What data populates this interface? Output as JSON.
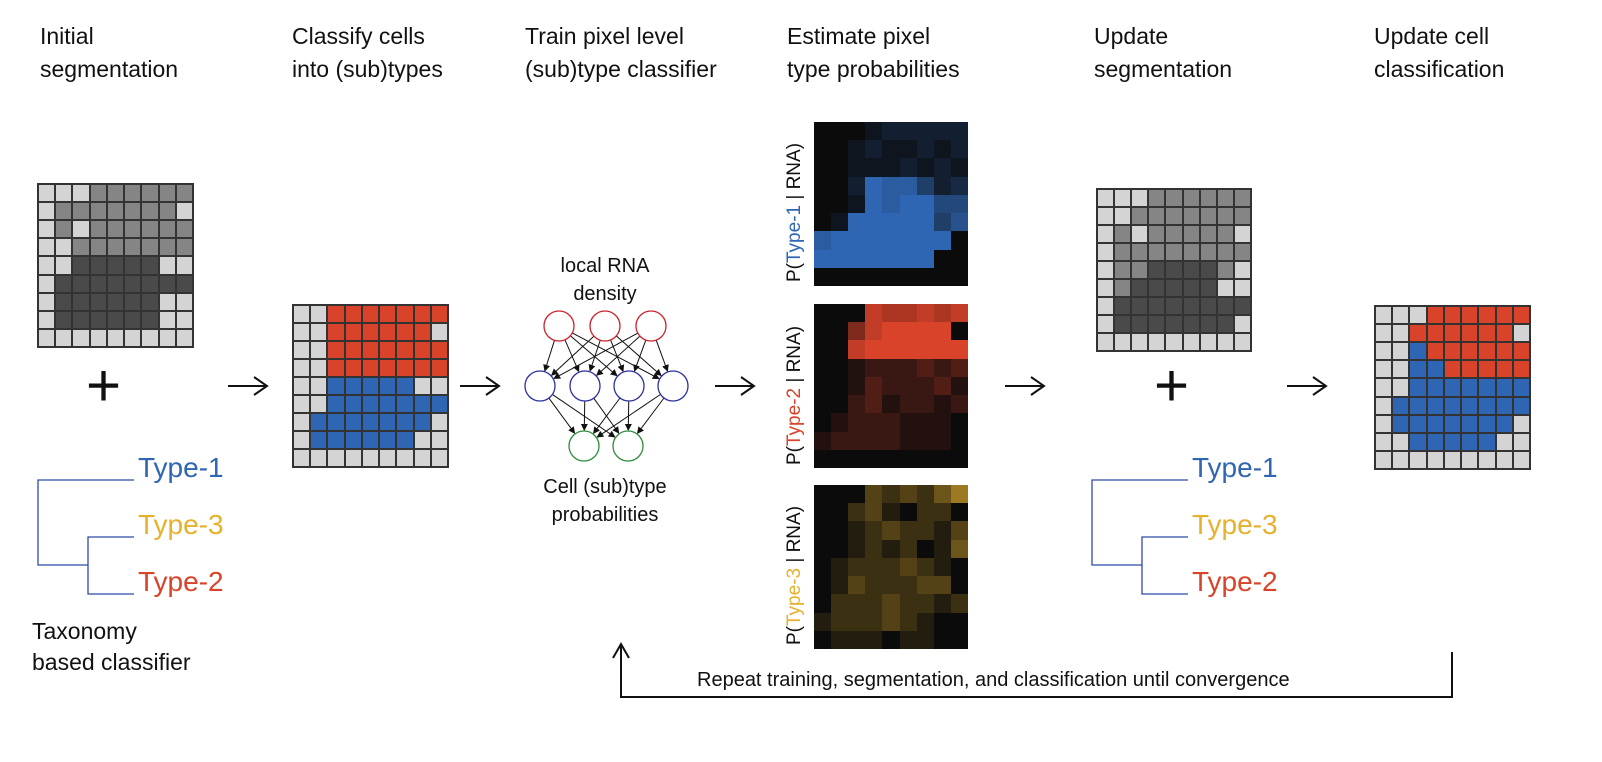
{
  "steps": [
    {
      "title": "Initial\nsegmentation"
    },
    {
      "title": "Classify cells\ninto (sub)types"
    },
    {
      "title": "Train pixel level\n(sub)type classifier"
    },
    {
      "title": "Estimate pixel\ntype probabilities"
    },
    {
      "title": "Update\nsegmentation"
    },
    {
      "title": "Update cell\nclassification"
    }
  ],
  "plus_symbol": "+",
  "taxonomy": {
    "type1": "Type-1",
    "type3": "Type-3",
    "type2": "Type-2",
    "caption": "Taxonomy\nbased classifier"
  },
  "nn": {
    "input_label": "local RNA\ndensity",
    "output_label": "Cell (sub)type\nprobabilities"
  },
  "prob_panels": [
    {
      "prefix": "P(",
      "type": "Type-1",
      "suffix": " | RNA)"
    },
    {
      "prefix": "P(",
      "type": "Type-2",
      "suffix": " | RNA)"
    },
    {
      "prefix": "P(",
      "type": "Type-3",
      "suffix": " | RNA)"
    }
  ],
  "loop_text": "Repeat training,  segmentation, and classification until convergence",
  "colors": {
    "type1": "#2f66b3",
    "type2": "#d9432a",
    "type3": "#e6b12c",
    "light_gray": "#d4d4d4",
    "mid_gray": "#858585",
    "dark_gray": "#4a4a4a",
    "nn_input": "#c8232c",
    "nn_hidden": "#2b2f9e",
    "nn_output": "#2e8b3c"
  }
}
